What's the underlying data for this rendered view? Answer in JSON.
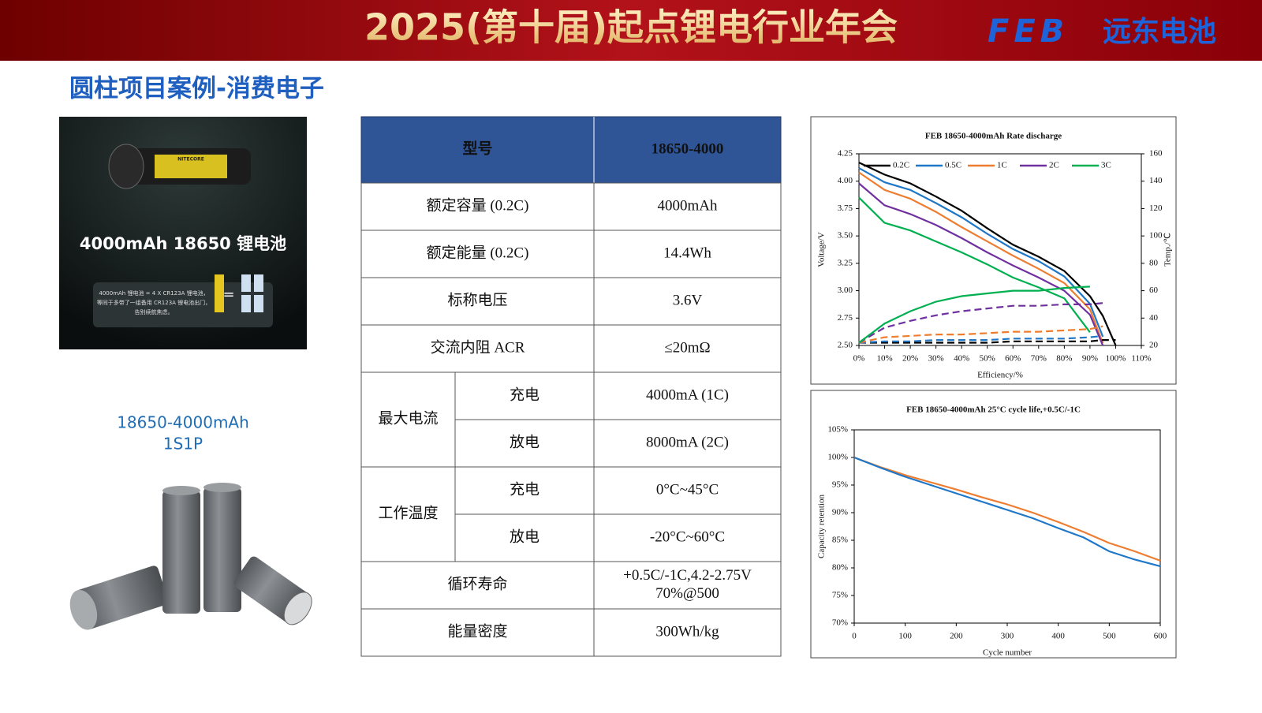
{
  "header": {
    "title": "2025(第十届)起点锂电行业年会",
    "logo_mark": "FEB",
    "logo_text": "远东电池"
  },
  "section_title": "圆柱项目案例-消费电子",
  "product": {
    "brand": "NITECORE",
    "headline": "4000mAh 18650 锂电池",
    "note_lines": [
      "4000mAh 锂电池 = 4 X CR123A 锂电池，",
      "等同于多带了一组备用 CR123A 锂电池出门，",
      "告别续航焦虑。"
    ],
    "model": "18650-4000mAh",
    "config": "1S1P"
  },
  "table": {
    "header": [
      "型号",
      "18650-4000"
    ],
    "rows": [
      {
        "label": "额定容量 (0.2C)",
        "value": "4000mAh"
      },
      {
        "label": "额定能量 (0.2C)",
        "value": "14.4Wh"
      },
      {
        "label": "标称电压",
        "value": "3.6V"
      },
      {
        "label": "交流内阻 ACR",
        "value": "≤20mΩ"
      },
      {
        "label": "最大电流",
        "sub": [
          {
            "label": "充电",
            "value": "4000mA (1C)"
          },
          {
            "label": "放电",
            "value": "8000mA (2C)"
          }
        ]
      },
      {
        "label": "工作温度",
        "sub": [
          {
            "label": "充电",
            "value": "0°C~45°C"
          },
          {
            "label": "放电",
            "value": "-20°C~60°C"
          }
        ]
      },
      {
        "label": "循环寿命",
        "value": [
          "+0.5C/-1C,4.2-2.75V",
          "70%@500"
        ]
      },
      {
        "label": "能量密度",
        "value": "300Wh/kg"
      }
    ]
  },
  "chart_data": [
    {
      "type": "line",
      "title": "FEB 18650-4000mAh Rate discharge",
      "xlabel": "Efficiency/%",
      "ylabel": "Voltage/V",
      "y2label": "Temp./℃",
      "legend": "upper left",
      "grid": false,
      "x": [
        0,
        10,
        20,
        30,
        40,
        50,
        60,
        70,
        80,
        90,
        95,
        100
      ],
      "xlim": [
        0,
        110
      ],
      "xticks": [
        {
          "value": 0,
          "label": "0%"
        },
        {
          "value": 10,
          "label": "10%"
        },
        {
          "value": 20,
          "label": "20%"
        },
        {
          "value": 30,
          "label": "30%"
        },
        {
          "value": 40,
          "label": "40%"
        },
        {
          "value": 50,
          "label": "50%"
        },
        {
          "value": 60,
          "label": "60%"
        },
        {
          "value": 70,
          "label": "70%"
        },
        {
          "value": 80,
          "label": "80%"
        },
        {
          "value": 90,
          "label": "90%"
        },
        {
          "value": 100,
          "label": "100%"
        },
        {
          "value": 110,
          "label": "110%"
        }
      ],
      "ylim": [
        2.5,
        4.25
      ],
      "yticks": [
        {
          "value": 2.5,
          "label": "2.50"
        },
        2.75,
        {
          "value": 3,
          "label": "3.00"
        },
        3.25,
        {
          "value": 3.5,
          "label": "3.50"
        },
        3.75,
        {
          "value": 4,
          "label": "4.00"
        },
        4.25
      ],
      "y2lim": [
        20,
        160
      ],
      "y2ticks": [
        20,
        40,
        60,
        80,
        100,
        120,
        140,
        160
      ],
      "series": [
        {
          "name": "0.2C",
          "color": "#000000",
          "values": [
            4.17,
            4.06,
            3.98,
            3.86,
            3.73,
            3.57,
            3.42,
            3.31,
            3.18,
            2.95,
            2.77,
            2.5
          ]
        },
        {
          "name": "0.5C",
          "color": "#1f77c8",
          "values": [
            4.12,
            3.99,
            3.92,
            3.8,
            3.67,
            3.52,
            3.38,
            3.27,
            3.13,
            2.88,
            2.58,
            null
          ]
        },
        {
          "name": "1C",
          "color": "#ed7d31",
          "values": [
            4.08,
            3.92,
            3.84,
            3.72,
            3.58,
            3.45,
            3.32,
            3.2,
            3.07,
            2.83,
            2.52,
            null
          ]
        },
        {
          "name": "2C",
          "color": "#7030a0",
          "values": [
            3.98,
            3.78,
            3.7,
            3.6,
            3.48,
            3.35,
            3.23,
            3.12,
            3.0,
            2.78,
            2.5,
            null
          ]
        },
        {
          "name": "3C",
          "color": "#00b050",
          "values": [
            3.85,
            3.62,
            3.55,
            3.45,
            3.35,
            3.24,
            3.12,
            3.03,
            2.93,
            2.62,
            null,
            null
          ]
        },
        {
          "color": "#000000",
          "axis": "y2",
          "dash": true,
          "values": [
            22,
            22,
            22,
            22,
            22,
            22,
            23,
            23,
            23,
            23,
            24,
            24
          ]
        },
        {
          "color": "#1f77c8",
          "axis": "y2",
          "dash": true,
          "values": [
            22,
            23,
            23,
            24,
            24,
            24,
            25,
            25,
            25,
            26,
            27,
            null
          ]
        },
        {
          "color": "#ed7d31",
          "axis": "y2",
          "dash": true,
          "values": [
            22,
            26,
            27,
            28,
            28,
            29,
            30,
            30,
            31,
            32,
            34,
            null
          ]
        },
        {
          "color": "#7030a0",
          "axis": "y2",
          "dash": true,
          "values": [
            22,
            33,
            38,
            42,
            45,
            47,
            49,
            49,
            50,
            50,
            51,
            null
          ]
        },
        {
          "color": "#00b050",
          "axis": "y2",
          "values": [
            22,
            36,
            45,
            52,
            56,
            58,
            60,
            60,
            62,
            63,
            null,
            null
          ]
        }
      ]
    },
    {
      "type": "line",
      "title": "FEB 18650-4000mAh 25°C cycle life,+0.5C/-1C",
      "xlabel": "Cycle number",
      "ylabel": "Capacity retention",
      "grid": false,
      "x": [
        0,
        50,
        100,
        150,
        200,
        250,
        300,
        350,
        400,
        450,
        500,
        550,
        600
      ],
      "xlim": [
        0,
        600
      ],
      "xticks": [
        0,
        100,
        200,
        300,
        400,
        500,
        600
      ],
      "ylim": [
        70,
        105
      ],
      "yticks": [
        {
          "value": 70,
          "label": "70%"
        },
        {
          "value": 75,
          "label": "75%"
        },
        {
          "value": 80,
          "label": "80%"
        },
        {
          "value": 85,
          "label": "85%"
        },
        {
          "value": 90,
          "label": "90%"
        },
        {
          "value": 95,
          "label": "95%"
        },
        {
          "value": 100,
          "label": "100%"
        },
        {
          "value": 105,
          "label": "105%"
        }
      ],
      "series": [
        {
          "color": "#ed7d31",
          "values": [
            100,
            98.3,
            96.8,
            95.5,
            94.2,
            92.8,
            91.5,
            90,
            88.3,
            86.5,
            84.5,
            83,
            81.3
          ]
        },
        {
          "color": "#1f77c8",
          "values": [
            100,
            98.2,
            96.5,
            95,
            93.5,
            92,
            90.5,
            89,
            87.2,
            85.5,
            83,
            81.5,
            80.3
          ]
        }
      ]
    }
  ]
}
